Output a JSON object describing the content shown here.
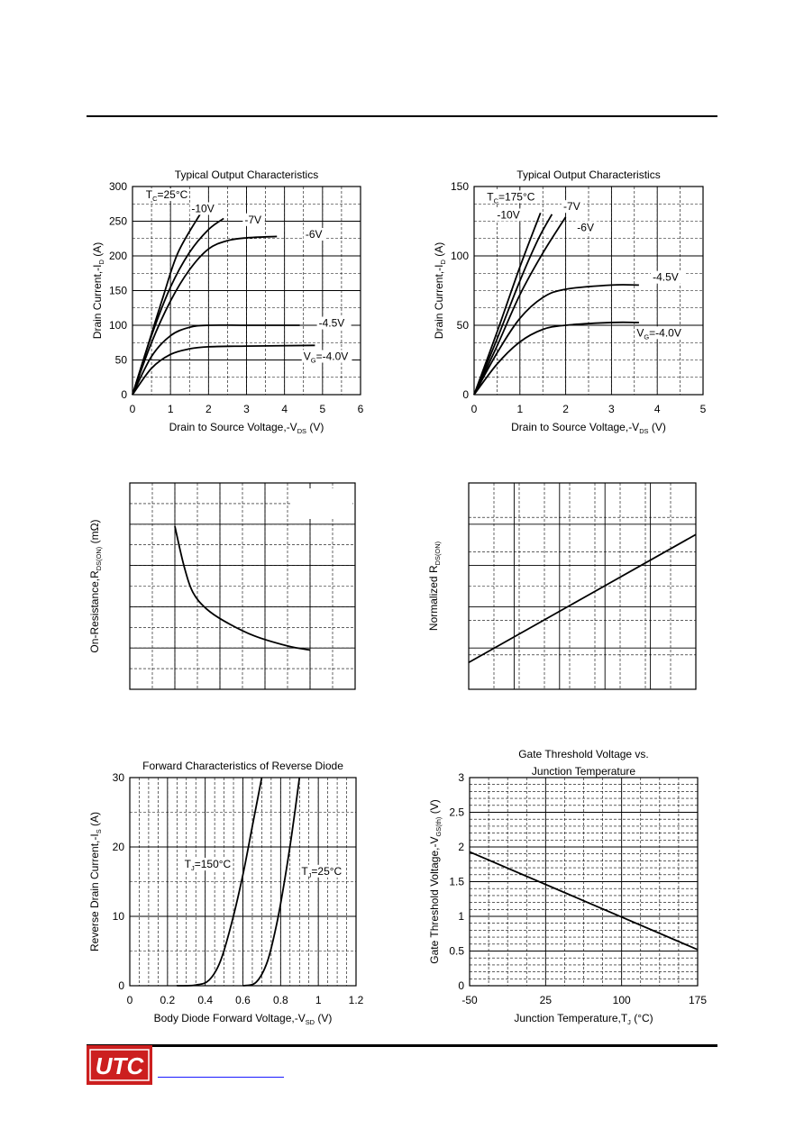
{
  "logo": {
    "text": "UTC",
    "color_bg": "#cc1f1f",
    "color_text": "#ffffff"
  },
  "chart_data": [
    {
      "id": "c1",
      "type": "line",
      "title": "Typical Output Characteristics",
      "xlabel": "Drain to Source Voltage,-V",
      "xlabel_sub": "DS",
      "xlabel_tail": " (V)",
      "ylabel": "Drain Current,-I",
      "ylabel_sub": "D",
      "ylabel_tail": " (A)",
      "xlim": [
        0,
        6
      ],
      "ylim": [
        0,
        300
      ],
      "xticks": [
        "0",
        "1",
        "2",
        "3",
        "4",
        "5",
        "6"
      ],
      "yticks": [
        "0",
        "50",
        "100",
        "150",
        "200",
        "250",
        "300"
      ],
      "xgrid_major": 6,
      "ygrid_major": 6,
      "grid": true,
      "annotations": [
        {
          "text": "T",
          "sub": "C",
          "tail": "=25°C",
          "x": 0.35,
          "y": 283
        },
        {
          "text": "-10V",
          "x": 1.55,
          "y": 263
        },
        {
          "text": "-7V",
          "x": 2.95,
          "y": 247
        },
        {
          "text": "-6V",
          "x": 4.55,
          "y": 226
        },
        {
          "text": "-4.5V",
          "x": 4.9,
          "y": 98
        },
        {
          "text": "V",
          "sub": "G",
          "tail": "=-4.0V",
          "x": 4.5,
          "y": 50
        }
      ],
      "series": [
        {
          "values": [
            [
              0,
              0
            ],
            [
              0.4,
              70
            ],
            [
              0.8,
              140
            ],
            [
              1.2,
              205
            ],
            [
              1.8,
              262
            ]
          ]
        },
        {
          "values": [
            [
              0,
              0
            ],
            [
              0.5,
              85
            ],
            [
              1.0,
              155
            ],
            [
              1.5,
              205
            ],
            [
              2.0,
              238
            ],
            [
              2.4,
              254
            ]
          ]
        },
        {
          "values": [
            [
              0,
              0
            ],
            [
              0.5,
              75
            ],
            [
              1.0,
              135
            ],
            [
              1.5,
              180
            ],
            [
              2.0,
              210
            ],
            [
              2.5,
              222
            ],
            [
              3.0,
              226
            ],
            [
              3.8,
              228
            ]
          ]
        },
        {
          "values": [
            [
              0,
              0
            ],
            [
              0.5,
              55
            ],
            [
              1.0,
              85
            ],
            [
              1.5,
              97
            ],
            [
              2.0,
              100
            ],
            [
              3.0,
              100
            ],
            [
              4.4,
              100
            ]
          ]
        },
        {
          "values": [
            [
              0,
              0
            ],
            [
              0.5,
              38
            ],
            [
              1.0,
              58
            ],
            [
              1.5,
              66
            ],
            [
              2.0,
              69
            ],
            [
              3.0,
              70
            ],
            [
              4.8,
              71
            ]
          ]
        }
      ]
    },
    {
      "id": "c2",
      "type": "line",
      "title": "Typical Output Characteristics",
      "xlabel": "Drain to Source Voltage,-V",
      "xlabel_sub": "DS",
      "xlabel_tail": " (V)",
      "ylabel": "Drain Current,-I",
      "ylabel_sub": "D",
      "ylabel_tail": " (A)",
      "xlim": [
        0,
        5
      ],
      "ylim": [
        0,
        150
      ],
      "xticks": [
        "0",
        "1",
        "2",
        "3",
        "4",
        "5"
      ],
      "yticks": [
        "0",
        "50",
        "100",
        "150"
      ],
      "grid": true,
      "annotations": [
        {
          "text": "T",
          "sub": "C",
          "tail": "=175°C",
          "x": 0.28,
          "y": 140
        },
        {
          "text": "-10V",
          "x": 0.5,
          "y": 127
        },
        {
          "text": "-7V",
          "x": 1.95,
          "y": 133
        },
        {
          "text": "-6V",
          "x": 2.25,
          "y": 118
        },
        {
          "text": "-4.5V",
          "x": 3.9,
          "y": 82
        },
        {
          "text": "V",
          "sub": "G",
          "tail": "=-4.0V",
          "x": 3.55,
          "y": 42
        }
      ],
      "series": [
        {
          "values": [
            [
              0,
              0
            ],
            [
              0.5,
              45
            ],
            [
              1.0,
              92
            ],
            [
              1.45,
              131
            ]
          ]
        },
        {
          "values": [
            [
              0,
              0
            ],
            [
              0.5,
              40
            ],
            [
              1.0,
              82
            ],
            [
              1.4,
              112
            ],
            [
              1.7,
              130
            ]
          ]
        },
        {
          "values": [
            [
              0,
              0
            ],
            [
              0.5,
              35
            ],
            [
              1.0,
              72
            ],
            [
              1.5,
              102
            ],
            [
              2.0,
              128
            ]
          ]
        },
        {
          "values": [
            [
              0,
              0
            ],
            [
              0.5,
              30
            ],
            [
              1.0,
              55
            ],
            [
              1.5,
              70
            ],
            [
              2.0,
              76
            ],
            [
              3.0,
              79
            ],
            [
              3.6,
              79
            ]
          ]
        },
        {
          "values": [
            [
              0,
              0
            ],
            [
              0.5,
              22
            ],
            [
              1.0,
              38
            ],
            [
              1.5,
              47
            ],
            [
              2.0,
              50
            ],
            [
              3.0,
              52
            ],
            [
              3.6,
              52
            ]
          ]
        }
      ]
    },
    {
      "id": "c3",
      "type": "line",
      "title": "",
      "xlabel": "",
      "ylabel": "On-Resistance,R",
      "ylabel_sub": "DS(ON)",
      "ylabel_tail": " (mΩ)",
      "xlim": [
        0,
        10
      ],
      "ylim": [
        0,
        10
      ],
      "xticks": [],
      "yticks": [],
      "grid": true,
      "series": [
        {
          "values": [
            [
              2.0,
              7.9
            ],
            [
              2.4,
              6.0
            ],
            [
              2.8,
              4.7
            ],
            [
              3.4,
              3.9
            ],
            [
              4.2,
              3.3
            ],
            [
              5.5,
              2.6
            ],
            [
              7.0,
              2.1
            ],
            [
              8.0,
              1.9
            ]
          ]
        }
      ]
    },
    {
      "id": "c4",
      "type": "line",
      "title": "",
      "xlabel": "",
      "ylabel": "Normalized R",
      "ylabel_sub": "DS(ON)",
      "ylabel_tail": "",
      "xlim": [
        0,
        10
      ],
      "ylim": [
        0,
        10
      ],
      "xticks": [],
      "yticks": [],
      "grid": true,
      "series": [
        {
          "values": [
            [
              0,
              1.3
            ],
            [
              10,
              7.5
            ]
          ]
        }
      ]
    },
    {
      "id": "c5",
      "type": "line",
      "title": "Forward Characteristics of Reverse Diode",
      "xlabel": "Body Diode Forward Voltage,-V",
      "xlabel_sub": "SD",
      "xlabel_tail": " (V)",
      "ylabel": "Reverse Drain Current,-I",
      "ylabel_sub": "S",
      "ylabel_tail": " (A)",
      "xlim": [
        0,
        1.2
      ],
      "ylim": [
        0,
        30
      ],
      "xticks": [
        "0",
        "0.2",
        "0.4",
        "0.6",
        "0.8",
        "1",
        "1.2"
      ],
      "yticks": [
        "0",
        "10",
        "20",
        "30"
      ],
      "grid": true,
      "annotations": [
        {
          "text": "T",
          "sub": "J",
          "tail": "=150°C",
          "x": 0.29,
          "y": 17
        },
        {
          "text": "T",
          "sub": "J",
          "tail": "=25°C",
          "x": 0.91,
          "y": 16
        }
      ],
      "series": [
        {
          "name": "T_J=150°C",
          "values": [
            [
              0.25,
              0
            ],
            [
              0.35,
              0.1
            ],
            [
              0.42,
              0.8
            ],
            [
              0.48,
              3.5
            ],
            [
              0.54,
              9
            ],
            [
              0.6,
              16
            ],
            [
              0.65,
              23
            ],
            [
              0.7,
              30
            ]
          ]
        },
        {
          "name": "T_J=25°C",
          "values": [
            [
              0.6,
              0
            ],
            [
              0.67,
              0.5
            ],
            [
              0.73,
              3.5
            ],
            [
              0.78,
              9
            ],
            [
              0.82,
              15
            ],
            [
              0.86,
              22
            ],
            [
              0.9,
              30
            ]
          ]
        }
      ]
    },
    {
      "id": "c6",
      "type": "line",
      "title": "Gate Threshold Voltage vs.",
      "title2": "Junction Temperature",
      "xlabel": "Junction Temperature,T",
      "xlabel_sub": "J",
      "xlabel_tail": " (°C)",
      "ylabel": "Gate Threshold Voltage,-V",
      "ylabel_sub": "GS(th)",
      "ylabel_tail": " (V)",
      "xlim": [
        -50,
        175
      ],
      "ylim": [
        0,
        3
      ],
      "xticks": [
        "-50",
        "25",
        "100",
        "175"
      ],
      "yticks": [
        "0",
        "0.5",
        "1",
        "1.5",
        "2",
        "2.5",
        "3"
      ],
      "grid": true,
      "series": [
        {
          "values": [
            [
              -50,
              1.93
            ],
            [
              175,
              0.52
            ]
          ]
        }
      ]
    }
  ]
}
